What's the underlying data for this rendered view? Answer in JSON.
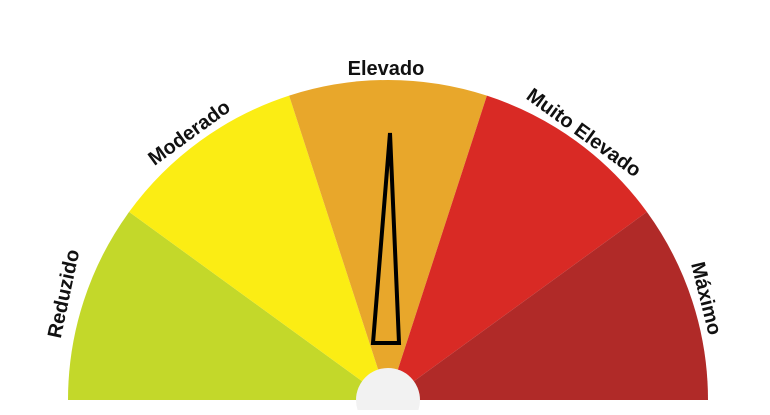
{
  "gauge": {
    "levels": [
      {
        "label": "Reduzido",
        "color": "#c3d82a"
      },
      {
        "label": "Moderado",
        "color": "#fbed14"
      },
      {
        "label": "Elevado",
        "color": "#e8a72b"
      },
      {
        "label": "Muito Elevado",
        "color": "#d92a25"
      },
      {
        "label": "Máximo",
        "color": "#b02a28"
      }
    ],
    "current_level": "Elevado",
    "hub_color": "#f2f2f2",
    "needle_color": "#000000"
  }
}
